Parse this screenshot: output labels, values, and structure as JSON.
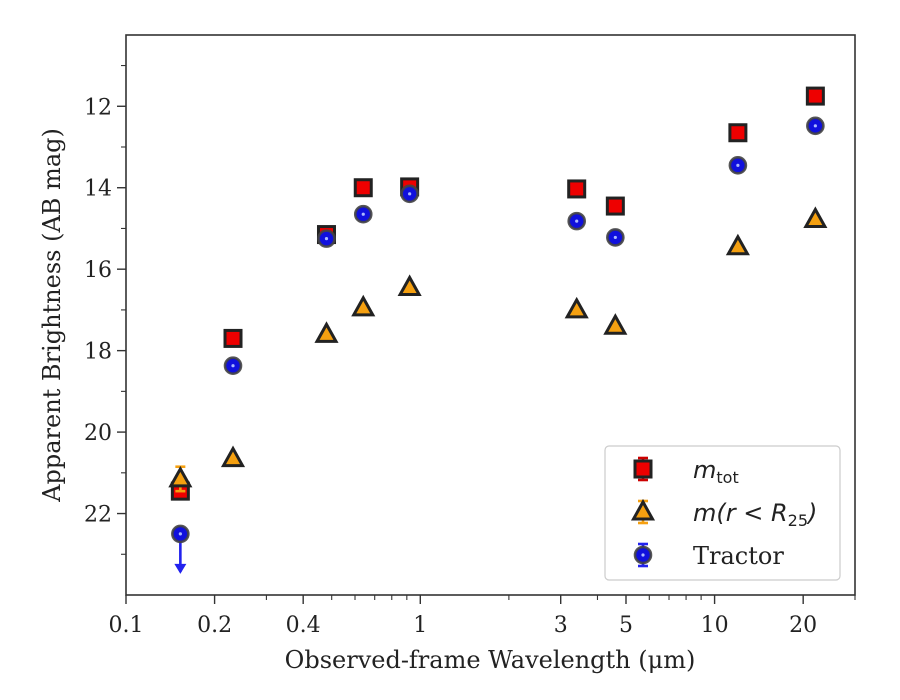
{
  "chart_data": {
    "type": "scatter",
    "title": "",
    "xlabel": "Observed-frame Wavelength (μm)",
    "ylabel": "Apparent Brightness (AB mag)",
    "x_scale": "log",
    "xlim": [
      0.1,
      30
    ],
    "ylim": [
      24.0,
      10.25
    ],
    "y_inverted": true,
    "x_ticks": [
      {
        "value": 0.1,
        "label": "0.1"
      },
      {
        "value": 0.2,
        "label": "0.2"
      },
      {
        "value": 0.4,
        "label": "0.4"
      },
      {
        "value": 1,
        "label": "1"
      },
      {
        "value": 3,
        "label": "3"
      },
      {
        "value": 5,
        "label": "5"
      },
      {
        "value": 10,
        "label": "10"
      },
      {
        "value": 20,
        "label": "20"
      }
    ],
    "x_minor_ticks": [
      0.3,
      0.5,
      0.6,
      0.7,
      0.8,
      0.9,
      2,
      4,
      6,
      7,
      8,
      9,
      30
    ],
    "y_ticks": [
      {
        "value": 12,
        "label": "12"
      },
      {
        "value": 14,
        "label": "14"
      },
      {
        "value": 16,
        "label": "16"
      },
      {
        "value": 18,
        "label": "18"
      },
      {
        "value": 20,
        "label": "20"
      },
      {
        "value": 22,
        "label": "22"
      }
    ],
    "y_minor_ticks": [
      11,
      13,
      15,
      17,
      19,
      21,
      23
    ],
    "grid": false,
    "legend_position": "lower-right",
    "series": [
      {
        "key": "m_tot",
        "legend_main": "m",
        "legend_sub": "tot",
        "marker": "square",
        "color": "#ee0000",
        "edge_color": "#222222",
        "errbar_color": "#cc0000",
        "points": [
          {
            "x": 0.153,
            "y": 21.45
          },
          {
            "x": 0.231,
            "y": 17.7
          },
          {
            "x": 0.48,
            "y": 15.15
          },
          {
            "x": 0.64,
            "y": 14.0
          },
          {
            "x": 0.92,
            "y": 13.98
          },
          {
            "x": 3.4,
            "y": 14.03
          },
          {
            "x": 4.6,
            "y": 14.45
          },
          {
            "x": 12.0,
            "y": 12.65
          },
          {
            "x": 22.0,
            "y": 11.75
          }
        ]
      },
      {
        "key": "m_r25",
        "legend_main": "m(r < R",
        "legend_sub": "25",
        "legend_tail": ")",
        "marker": "triangle",
        "color": "#f5a010",
        "edge_color": "#222222",
        "errbar_color": "#f5a010",
        "points": [
          {
            "x": 0.153,
            "y": 21.15,
            "yerr": 0.3
          },
          {
            "x": 0.231,
            "y": 20.65
          },
          {
            "x": 0.48,
            "y": 17.6
          },
          {
            "x": 0.64,
            "y": 16.95
          },
          {
            "x": 0.92,
            "y": 16.45
          },
          {
            "x": 3.4,
            "y": 17.0
          },
          {
            "x": 4.6,
            "y": 17.4
          },
          {
            "x": 12.0,
            "y": 15.45
          },
          {
            "x": 22.0,
            "y": 14.78
          }
        ]
      },
      {
        "key": "tractor",
        "legend_main": "Tractor",
        "marker": "circle",
        "color": "#1010dd",
        "edge_color": "#444444",
        "errbar_color": "#2222ee",
        "points": [
          {
            "x": 0.153,
            "y": 22.5,
            "upper_limit": true
          },
          {
            "x": 0.231,
            "y": 18.37
          },
          {
            "x": 0.48,
            "y": 15.25
          },
          {
            "x": 0.64,
            "y": 14.65
          },
          {
            "x": 0.92,
            "y": 14.15
          },
          {
            "x": 3.4,
            "y": 14.82
          },
          {
            "x": 4.6,
            "y": 15.22
          },
          {
            "x": 12.0,
            "y": 13.45
          },
          {
            "x": 22.0,
            "y": 12.48
          }
        ]
      }
    ]
  }
}
